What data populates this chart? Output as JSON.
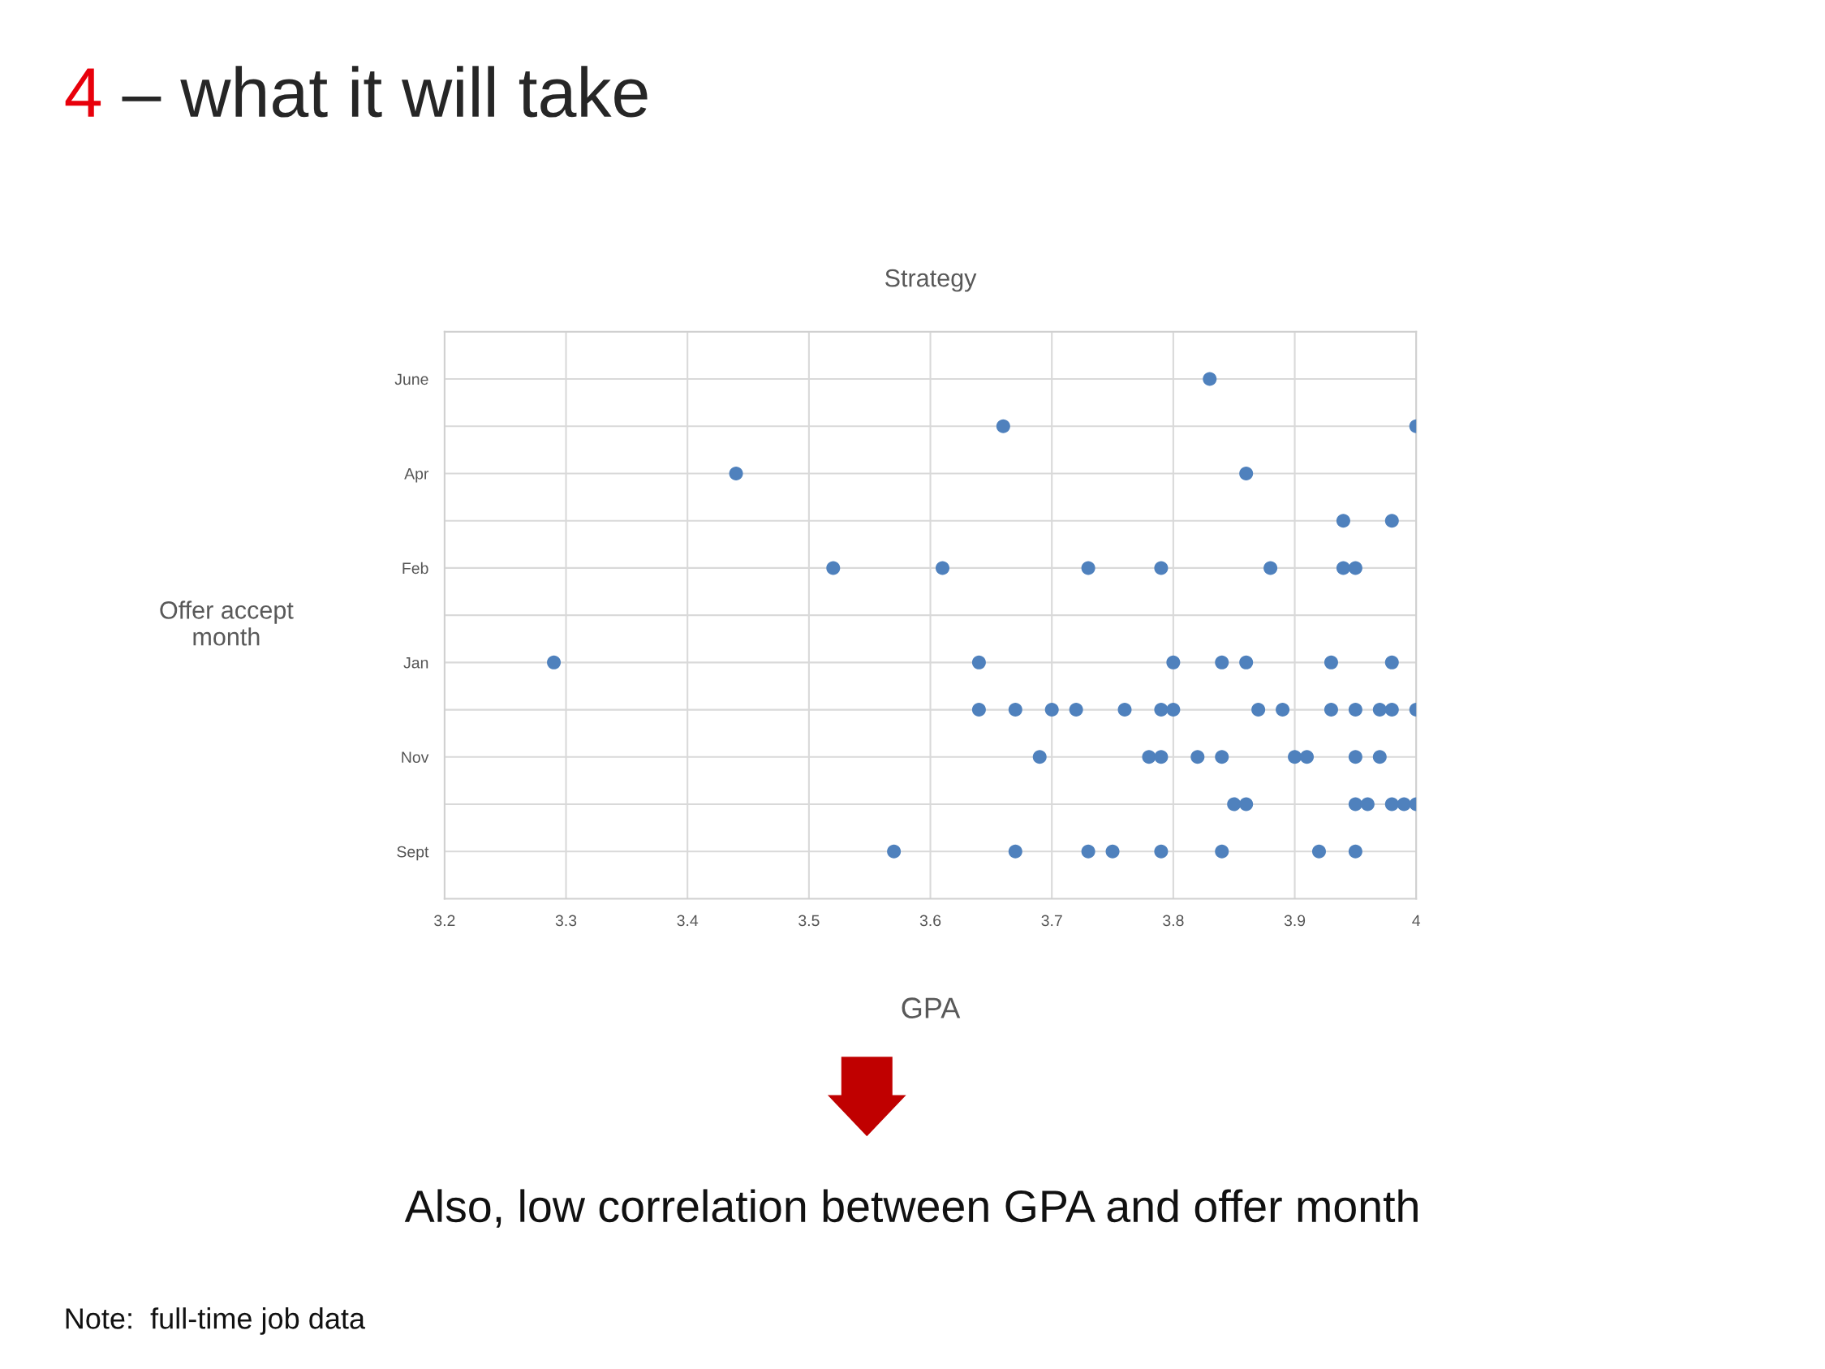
{
  "chart_data": {
    "type": "scatter",
    "orientation": "horizontal",
    "title": "Strategy",
    "xlabel": "GPA",
    "ylabel": "Offer accept\nmonth",
    "annotations": [
      "4 – what it will take",
      "Also, low correlation between GPA and offer month",
      "Note:  full-time job data"
    ],
    "categories": [
      "June",
      null,
      "Apr",
      null,
      "Feb",
      null,
      "Jan",
      null,
      "Nov",
      null,
      "Sept"
    ],
    "series": [
      {
        "color": "#4f81bd",
        "values": [
          3.83,
          3.66,
          3.44,
          3.94,
          3.52,
          null,
          3.29,
          3.64,
          3.69,
          3.85,
          3.57
        ]
      },
      {
        "color": "#4f81bd",
        "values": [
          null,
          4.0,
          3.86,
          3.98,
          3.61,
          null,
          3.64,
          3.67,
          3.78,
          3.86,
          3.67
        ]
      },
      {
        "color": "#4f81bd",
        "values": [
          null,
          null,
          null,
          null,
          3.73,
          null,
          3.8,
          3.7,
          3.79,
          3.95,
          3.73
        ]
      },
      {
        "color": "#4f81bd",
        "values": [
          null,
          null,
          null,
          null,
          3.79,
          null,
          3.84,
          3.72,
          3.82,
          3.96,
          3.75
        ]
      },
      {
        "color": "#4f81bd",
        "values": [
          null,
          null,
          null,
          null,
          3.88,
          null,
          3.86,
          3.76,
          3.84,
          3.98,
          3.79
        ]
      },
      {
        "color": "#4f81bd",
        "values": [
          null,
          null,
          null,
          null,
          3.94,
          null,
          3.93,
          3.79,
          3.9,
          3.99,
          3.84
        ]
      },
      {
        "color": "#4f81bd",
        "values": [
          null,
          null,
          null,
          null,
          3.95,
          null,
          3.98,
          3.8,
          3.91,
          4.0,
          3.92
        ]
      },
      {
        "color": "#4f81bd",
        "values": [
          null,
          null,
          null,
          null,
          null,
          null,
          null,
          3.87,
          3.95,
          null,
          3.95
        ]
      },
      {
        "color": "#4f81bd",
        "values": [
          null,
          null,
          null,
          null,
          null,
          null,
          null,
          3.89,
          3.97,
          null,
          null
        ]
      },
      {
        "color": "#4f81bd",
        "values": [
          null,
          null,
          null,
          null,
          null,
          null,
          null,
          3.93,
          null,
          null,
          null
        ]
      },
      {
        "color": "#4f81bd",
        "values": [
          null,
          null,
          null,
          null,
          null,
          null,
          null,
          3.95,
          null,
          null,
          null
        ]
      },
      {
        "color": "#4f81bd",
        "values": [
          null,
          null,
          null,
          null,
          null,
          null,
          null,
          3.97,
          null,
          null,
          null
        ]
      },
      {
        "color": "#4f81bd",
        "values": [
          null,
          null,
          null,
          null,
          null,
          null,
          null,
          3.98,
          null,
          null,
          null
        ]
      },
      {
        "color": "#4f81bd",
        "values": [
          null,
          null,
          null,
          null,
          null,
          null,
          null,
          4.0,
          null,
          null,
          null
        ]
      }
    ],
    "marker": "circle",
    "grid": true,
    "xlim": [
      3.2,
      4
    ],
    "xticks": [
      3.2,
      3.3,
      3.4,
      3.5,
      3.6,
      3.7,
      3.8,
      3.9,
      4
    ]
  }
}
